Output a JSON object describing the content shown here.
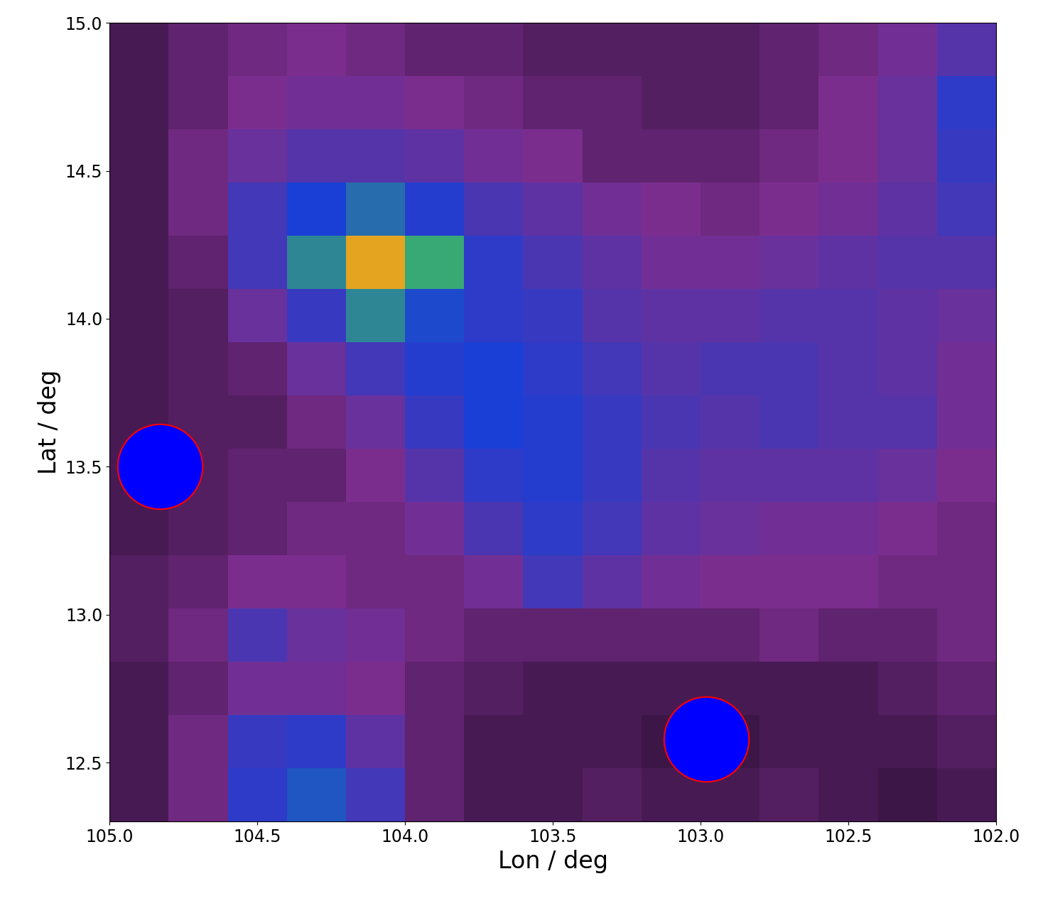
{
  "chart_data": {
    "type": "heatmap",
    "xlabel": "Lon / deg",
    "ylabel": "Lat / deg",
    "xlim": [
      105.0,
      102.0
    ],
    "ylim": [
      12.3,
      15.0
    ],
    "xticks": [
      {
        "value": 105.0,
        "label": "105.0"
      },
      {
        "value": 104.5,
        "label": "104.5"
      },
      {
        "value": 104.0,
        "label": "104.0"
      },
      {
        "value": 103.5,
        "label": "103.5"
      },
      {
        "value": 103.0,
        "label": "103.0"
      },
      {
        "value": 102.5,
        "label": "102.5"
      },
      {
        "value": 102.0,
        "label": "102.0"
      }
    ],
    "yticks": [
      {
        "value": 12.5,
        "label": "12.5"
      },
      {
        "value": 13.0,
        "label": "13.0"
      },
      {
        "value": 13.5,
        "label": "13.5"
      },
      {
        "value": 14.0,
        "label": "14.0"
      },
      {
        "value": 14.5,
        "label": "14.5"
      },
      {
        "value": 15.0,
        "label": "15.0"
      }
    ],
    "x_edges": [
      105.0,
      104.8,
      104.6,
      104.4,
      104.2,
      104.0,
      103.8,
      103.6,
      103.4,
      103.2,
      103.0,
      102.8,
      102.6,
      102.4,
      102.2,
      102.0
    ],
    "y_edges": [
      12.3,
      12.48,
      12.66,
      12.84,
      13.02,
      13.2,
      13.38,
      13.56,
      13.74,
      13.92,
      14.1,
      14.28,
      14.46,
      14.64,
      14.82,
      15.0
    ],
    "clim": [
      0,
      5
    ],
    "colors": [
      "#000000",
      "#7b2d8e",
      "#1a3fd6",
      "#3bb36b",
      "#e8e020",
      "#e0201c"
    ],
    "cells": [
      [
        0.6,
        0.9,
        1.8,
        2.2,
        1.6,
        0.8,
        0.6,
        0.6,
        0.7,
        0.6,
        0.6,
        0.7,
        0.6,
        0.5,
        0.6
      ],
      [
        0.6,
        0.9,
        1.7,
        1.8,
        1.3,
        0.8,
        0.6,
        0.6,
        0.6,
        0.5,
        0.5,
        0.6,
        0.6,
        0.6,
        0.7
      ],
      [
        0.6,
        0.8,
        1.1,
        1.1,
        1.0,
        0.8,
        0.7,
        0.6,
        0.6,
        0.6,
        0.6,
        0.6,
        0.6,
        0.7,
        0.8
      ],
      [
        0.7,
        0.9,
        1.5,
        1.2,
        1.1,
        0.9,
        0.8,
        0.8,
        0.8,
        0.8,
        0.8,
        0.9,
        0.8,
        0.8,
        0.9
      ],
      [
        0.7,
        0.8,
        1.0,
        1.0,
        0.9,
        0.9,
        1.1,
        1.6,
        1.3,
        1.1,
        1.0,
        1.0,
        1.0,
        0.9,
        0.9
      ],
      [
        0.6,
        0.7,
        0.8,
        0.9,
        0.9,
        1.1,
        1.5,
        1.8,
        1.6,
        1.3,
        1.2,
        1.1,
        1.1,
        1.0,
        0.9
      ],
      [
        0.6,
        0.7,
        0.8,
        0.8,
        1.0,
        1.4,
        1.8,
        1.9,
        1.7,
        1.4,
        1.3,
        1.3,
        1.3,
        1.2,
        1.0
      ],
      [
        0.6,
        0.7,
        0.7,
        0.9,
        1.2,
        1.7,
        2.0,
        1.9,
        1.7,
        1.5,
        1.4,
        1.5,
        1.4,
        1.4,
        1.1
      ],
      [
        0.6,
        0.7,
        0.8,
        1.2,
        1.6,
        1.9,
        2.0,
        1.8,
        1.6,
        1.4,
        1.5,
        1.5,
        1.4,
        1.3,
        1.1
      ],
      [
        0.6,
        0.7,
        1.2,
        1.7,
        2.6,
        2.1,
        1.8,
        1.7,
        1.4,
        1.3,
        1.3,
        1.4,
        1.4,
        1.3,
        1.2
      ],
      [
        0.6,
        0.8,
        1.6,
        2.6,
        4.3,
        2.9,
        1.8,
        1.5,
        1.3,
        1.1,
        1.1,
        1.2,
        1.3,
        1.4,
        1.4
      ],
      [
        0.6,
        0.9,
        1.6,
        2.0,
        2.4,
        1.9,
        1.5,
        1.3,
        1.1,
        1.0,
        0.9,
        1.0,
        1.1,
        1.3,
        1.6
      ],
      [
        0.6,
        0.9,
        1.2,
        1.4,
        1.4,
        1.3,
        1.1,
        1.0,
        0.8,
        0.8,
        0.8,
        0.9,
        1.0,
        1.2,
        1.7
      ],
      [
        0.6,
        0.8,
        1.0,
        1.1,
        1.1,
        1.0,
        0.9,
        0.8,
        0.8,
        0.7,
        0.7,
        0.8,
        1.0,
        1.2,
        1.8
      ],
      [
        0.6,
        0.8,
        0.9,
        1.0,
        0.9,
        0.8,
        0.8,
        0.7,
        0.7,
        0.7,
        0.7,
        0.8,
        0.9,
        1.1,
        1.4
      ]
    ],
    "points": {
      "x": [
        104.83,
        102.98
      ],
      "y": [
        13.5,
        12.58
      ],
      "color": "#0000ff",
      "marker": "o"
    }
  }
}
